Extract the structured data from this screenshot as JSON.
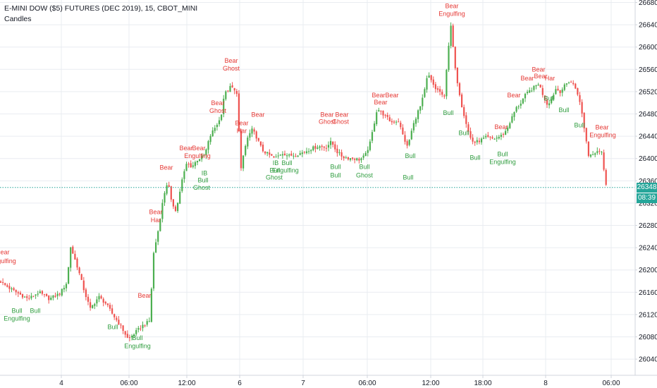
{
  "header": {
    "title": "E-MINI DOW ($5) FUTURES (DEC 2019), 15, CBOT_MINI",
    "subtitle": "Candles"
  },
  "colors": {
    "up": "#4caf50",
    "down": "#ef5350",
    "bull_label": "#2e9c3e",
    "bear_label": "#e53935",
    "grid": "#e9ecf1",
    "price_line": "#26a69a",
    "price_badge": "#26a69a",
    "timer_badge": "#26a69a",
    "axis_text": "#131722"
  },
  "price_badge": {
    "price": "26348",
    "timer": "08:39"
  },
  "chart_data": {
    "type": "candlestick",
    "title": "E-MINI DOW ($5) FUTURES (DEC 2019), 15, CBOT_MINI",
    "y_axis": {
      "ticks": [
        26680,
        26640,
        26600,
        26560,
        26520,
        26480,
        26440,
        26400,
        26360,
        26320,
        26280,
        26240,
        26200,
        26160,
        26120,
        26080,
        26040
      ],
      "ylim": [
        26010,
        26688
      ],
      "position": "right"
    },
    "x_axis": {
      "ticks": [
        "4",
        "06:00",
        "12:00",
        "6",
        "7",
        "06:00",
        "12:00",
        "18:00",
        "8",
        "06:00"
      ]
    },
    "last_price": 26348,
    "grid": true,
    "close_path": [
      [
        0,
        26180
      ],
      [
        8,
        26172
      ],
      [
        20,
        26162
      ],
      [
        40,
        26148
      ],
      [
        55,
        26160
      ],
      [
        70,
        26148
      ],
      [
        85,
        26158
      ],
      [
        95,
        26178
      ],
      [
        100,
        26242
      ],
      [
        110,
        26205
      ],
      [
        120,
        26160
      ],
      [
        128,
        26130
      ],
      [
        140,
        26152
      ],
      [
        150,
        26140
      ],
      [
        160,
        26120
      ],
      [
        172,
        26098
      ],
      [
        182,
        26075
      ],
      [
        192,
        26088
      ],
      [
        202,
        26100
      ],
      [
        212,
        26108
      ],
      [
        218,
        26230
      ],
      [
        225,
        26275
      ],
      [
        232,
        26332
      ],
      [
        238,
        26360
      ],
      [
        243,
        26322
      ],
      [
        250,
        26306
      ],
      [
        258,
        26360
      ],
      [
        265,
        26392
      ],
      [
        272,
        26385
      ],
      [
        280,
        26398
      ],
      [
        290,
        26405
      ],
      [
        298,
        26440
      ],
      [
        306,
        26458
      ],
      [
        313,
        26472
      ],
      [
        318,
        26515
      ],
      [
        323,
        26522
      ],
      [
        328,
        26530
      ],
      [
        333,
        26520
      ],
      [
        337,
        26518
      ],
      [
        341,
        26372
      ],
      [
        346,
        26412
      ],
      [
        352,
        26440
      ],
      [
        358,
        26452
      ],
      [
        364,
        26438
      ],
      [
        372,
        26415
      ],
      [
        380,
        26408
      ],
      [
        390,
        26400
      ],
      [
        400,
        26410
      ],
      [
        410,
        26405
      ],
      [
        420,
        26407
      ],
      [
        432,
        26412
      ],
      [
        442,
        26418
      ],
      [
        452,
        26422
      ],
      [
        462,
        26420
      ],
      [
        470,
        26430
      ],
      [
        478,
        26412
      ],
      [
        486,
        26403
      ],
      [
        494,
        26401
      ],
      [
        502,
        26400
      ],
      [
        510,
        26398
      ],
      [
        518,
        26405
      ],
      [
        525,
        26428
      ],
      [
        530,
        26458
      ],
      [
        535,
        26490
      ],
      [
        545,
        26478
      ],
      [
        555,
        26465
      ],
      [
        565,
        26468
      ],
      [
        572,
        26440
      ],
      [
        578,
        26420
      ],
      [
        585,
        26455
      ],
      [
        592,
        26482
      ],
      [
        597,
        26495
      ],
      [
        602,
        26520
      ],
      [
        607,
        26552
      ],
      [
        612,
        26538
      ],
      [
        618,
        26525
      ],
      [
        624,
        26520
      ],
      [
        630,
        26505
      ],
      [
        635,
        26588
      ],
      [
        640,
        26640
      ],
      [
        645,
        26565
      ],
      [
        650,
        26530
      ],
      [
        655,
        26495
      ],
      [
        660,
        26470
      ],
      [
        666,
        26440
      ],
      [
        672,
        26428
      ],
      [
        680,
        26432
      ],
      [
        690,
        26438
      ],
      [
        700,
        26435
      ],
      [
        710,
        26440
      ],
      [
        718,
        26450
      ],
      [
        725,
        26470
      ],
      [
        732,
        26490
      ],
      [
        738,
        26498
      ],
      [
        744,
        26512
      ],
      [
        752,
        26522
      ],
      [
        758,
        26528
      ],
      [
        764,
        26535
      ],
      [
        770,
        26515
      ],
      [
        776,
        26498
      ],
      [
        782,
        26505
      ],
      [
        788,
        26525
      ],
      [
        795,
        26520
      ],
      [
        802,
        26532
      ],
      [
        808,
        26540
      ],
      [
        815,
        26530
      ],
      [
        820,
        26515
      ],
      [
        825,
        26485
      ],
      [
        830,
        26445
      ],
      [
        835,
        26405
      ],
      [
        842,
        26410
      ],
      [
        848,
        26415
      ],
      [
        854,
        26412
      ],
      [
        858,
        26360
      ],
      [
        862,
        26348
      ]
    ],
    "annotations": [
      {
        "text": "Bear",
        "x": 4,
        "price": 26228,
        "type": "bear"
      },
      {
        "text": "Engulfing",
        "x": 4,
        "price": 26212,
        "type": "bear"
      },
      {
        "text": "Bull",
        "x": 24,
        "price": 26123,
        "type": "bull"
      },
      {
        "text": "Engulfing",
        "x": 24,
        "price": 26109,
        "type": "bull"
      },
      {
        "text": "Bull",
        "x": 50,
        "price": 26123,
        "type": "bull"
      },
      {
        "text": "Bull",
        "x": 160,
        "price": 26094,
        "type": "bull"
      },
      {
        "text": "Bull",
        "x": 195,
        "price": 26074,
        "type": "bull"
      },
      {
        "text": "Engulfing",
        "x": 195,
        "price": 26060,
        "type": "bull"
      },
      {
        "text": "Bear",
        "x": 205,
        "price": 26150,
        "type": "bear"
      },
      {
        "text": "Bear",
        "x": 221,
        "price": 26300,
        "type": "bear"
      },
      {
        "text": "Har",
        "x": 221,
        "price": 26286,
        "type": "bear"
      },
      {
        "text": "Bear",
        "x": 236,
        "price": 26380,
        "type": "bear"
      },
      {
        "text": "Bear",
        "x": 264,
        "price": 26415,
        "type": "bear"
      },
      {
        "text": "Bear",
        "x": 282,
        "price": 26415,
        "type": "bear"
      },
      {
        "text": "Engulfing",
        "x": 280,
        "price": 26401,
        "type": "bear"
      },
      {
        "text": "IB",
        "x": 290,
        "price": 26370,
        "type": "bull"
      },
      {
        "text": "Bull",
        "x": 288,
        "price": 26357,
        "type": "bull"
      },
      {
        "text": "Ghost",
        "x": 286,
        "price": 26344,
        "type": "bull"
      },
      {
        "text": "Bear",
        "x": 309,
        "price": 26496,
        "type": "bear"
      },
      {
        "text": "Ghost",
        "x": 309,
        "price": 26482,
        "type": "bear"
      },
      {
        "text": "Bear",
        "x": 328,
        "price": 26572,
        "type": "bear"
      },
      {
        "text": "Ghost",
        "x": 328,
        "price": 26558,
        "type": "bear"
      },
      {
        "text": "Bear",
        "x": 343,
        "price": 26460,
        "type": "bear"
      },
      {
        "text": "Har",
        "x": 343,
        "price": 26446,
        "type": "bear"
      },
      {
        "text": "Bear",
        "x": 366,
        "price": 26475,
        "type": "bear"
      },
      {
        "text": "IB",
        "x": 391,
        "price": 26388,
        "type": "bull"
      },
      {
        "text": "Bull",
        "x": 407,
        "price": 26388,
        "type": "bull"
      },
      {
        "text": "Bull",
        "x": 390,
        "price": 26375,
        "type": "bull"
      },
      {
        "text": "Engulfing",
        "x": 405,
        "price": 26375,
        "type": "bull"
      },
      {
        "text": "Ghost",
        "x": 389,
        "price": 26362,
        "type": "bull"
      },
      {
        "text": "Bear",
        "x": 464,
        "price": 26475,
        "type": "bear"
      },
      {
        "text": "Bear",
        "x": 485,
        "price": 26475,
        "type": "bear"
      },
      {
        "text": "Ghost",
        "x": 464,
        "price": 26462,
        "type": "bear"
      },
      {
        "text": "Ghost",
        "x": 483,
        "price": 26462,
        "type": "bear"
      },
      {
        "text": "Bull",
        "x": 476,
        "price": 26381,
        "type": "bull"
      },
      {
        "text": "Bull",
        "x": 476,
        "price": 26366,
        "type": "bull"
      },
      {
        "text": "Bull",
        "x": 517,
        "price": 26381,
        "type": "bull"
      },
      {
        "text": "Ghost",
        "x": 517,
        "price": 26366,
        "type": "bull"
      },
      {
        "text": "Bear",
        "x": 537,
        "price": 26510,
        "type": "bear"
      },
      {
        "text": "Bear",
        "x": 556,
        "price": 26510,
        "type": "bear"
      },
      {
        "text": "Bear",
        "x": 540,
        "price": 26497,
        "type": "bear"
      },
      {
        "text": "Bull",
        "x": 582,
        "price": 26401,
        "type": "bull"
      },
      {
        "text": "Bull",
        "x": 579,
        "price": 26362,
        "type": "bull"
      },
      {
        "text": "Bear",
        "x": 641,
        "price": 26670,
        "type": "bear"
      },
      {
        "text": "Engulfing",
        "x": 641,
        "price": 26656,
        "type": "bear"
      },
      {
        "text": "Bull",
        "x": 636,
        "price": 26478,
        "type": "bull"
      },
      {
        "text": "Bull",
        "x": 658,
        "price": 26442,
        "type": "bull"
      },
      {
        "text": "Bull",
        "x": 674,
        "price": 26398,
        "type": "bull"
      },
      {
        "text": "Bull",
        "x": 713,
        "price": 26404,
        "type": "bull"
      },
      {
        "text": "Engulfing",
        "x": 713,
        "price": 26390,
        "type": "bull"
      },
      {
        "text": "Bear",
        "x": 711,
        "price": 26453,
        "type": "bear"
      },
      {
        "text": "Bear",
        "x": 729,
        "price": 26510,
        "type": "bear"
      },
      {
        "text": "Bear",
        "x": 748,
        "price": 26540,
        "type": "bear"
      },
      {
        "text": "Bear",
        "x": 764,
        "price": 26556,
        "type": "bear"
      },
      {
        "text": "Bear",
        "x": 767,
        "price": 26544,
        "type": "bear"
      },
      {
        "text": "Har",
        "x": 780,
        "price": 26540,
        "type": "bear"
      },
      {
        "text": "Bull",
        "x": 779,
        "price": 26504,
        "type": "bull"
      },
      {
        "text": "Bull",
        "x": 800,
        "price": 26483,
        "type": "bull"
      },
      {
        "text": "Bull",
        "x": 822,
        "price": 26456,
        "type": "bull"
      },
      {
        "text": "Bear",
        "x": 854,
        "price": 26452,
        "type": "bear"
      },
      {
        "text": "Engulfing",
        "x": 855,
        "price": 26438,
        "type": "bear"
      }
    ]
  }
}
